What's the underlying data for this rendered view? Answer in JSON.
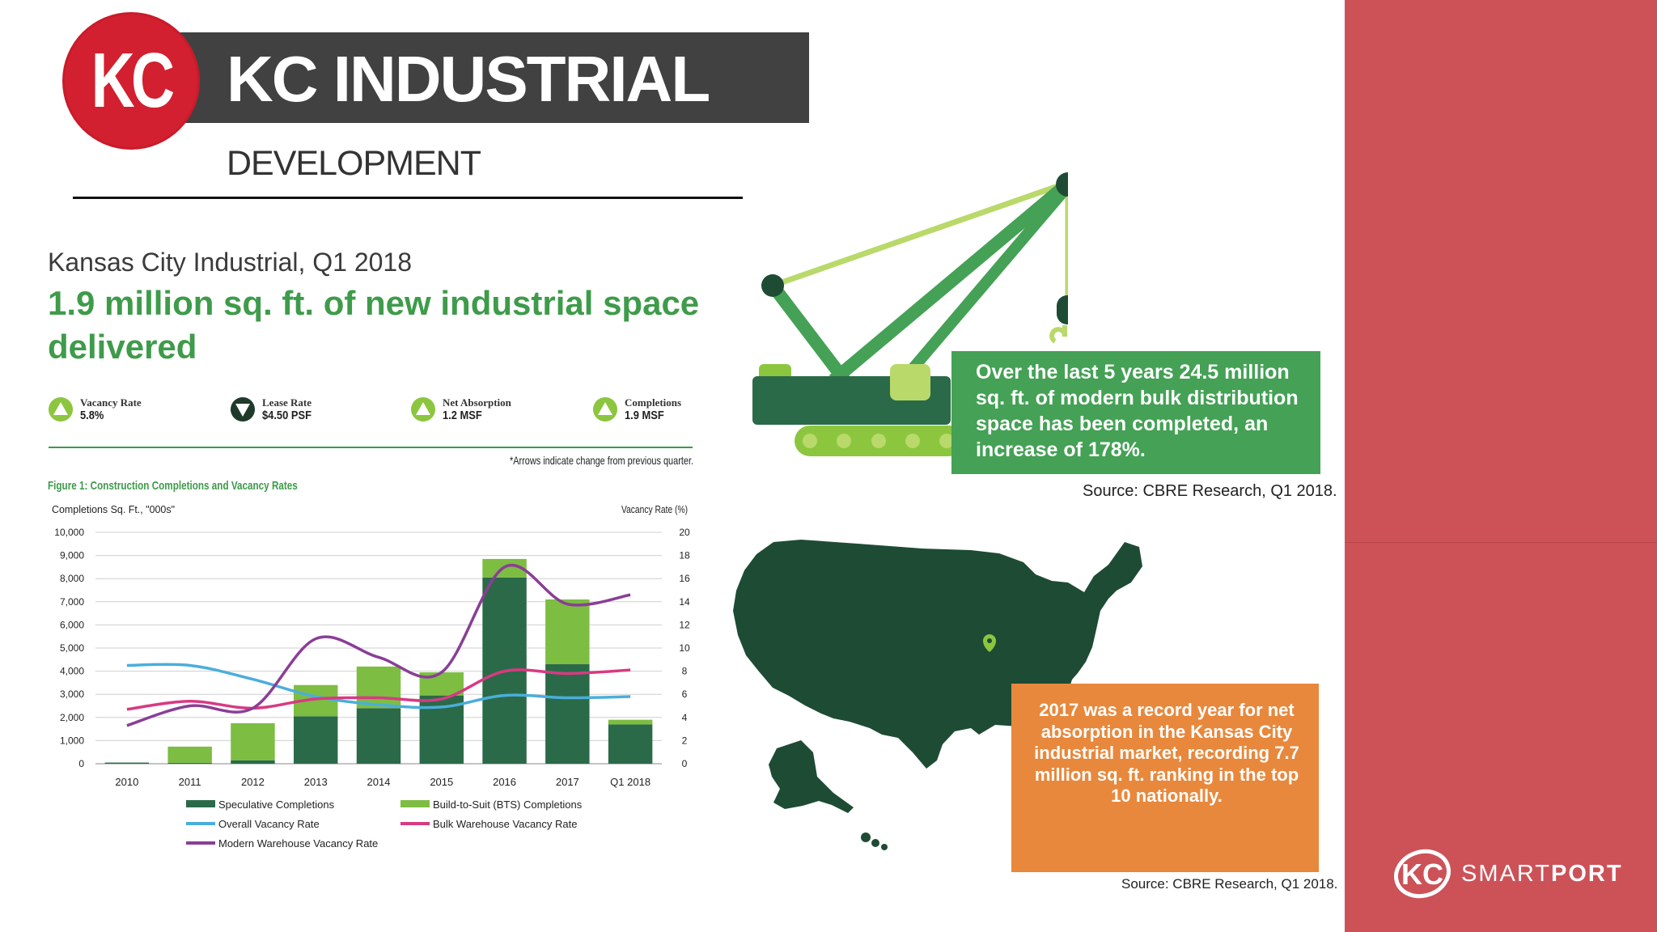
{
  "header": {
    "logo_text": "KC",
    "title": "KC INDUSTRIAL",
    "subtitle": "DEVELOPMENT"
  },
  "report": {
    "heading": "Kansas City Industrial, Q1 2018",
    "headline": "1.9 million sq. ft. of new industrial space delivered",
    "stats": [
      {
        "label": "Vacancy Rate",
        "value": "5.8%",
        "direction": "up"
      },
      {
        "label": "Lease Rate",
        "value": "$4.50 PSF",
        "direction": "down"
      },
      {
        "label": "Net Absorption",
        "value": "1.2 MSF",
        "direction": "up"
      },
      {
        "label": "Completions",
        "value": "1.9 MSF",
        "direction": "up"
      }
    ],
    "arrows_note": "*Arrows indicate change from previous quarter.",
    "figure_title": "Figure 1: Construction Completions and Vacancy Rates"
  },
  "chart_data": {
    "type": "bar",
    "title": "Figure 1: Construction Completions and Vacancy Rates",
    "ylabel": "Completions Sq. Ft., \"000s\"",
    "y2label": "Vacancy Rate (%)",
    "ylim": [
      0,
      10000
    ],
    "y2lim": [
      0,
      20
    ],
    "yticks": [
      "10,000",
      "9,000",
      "8,000",
      "7,000",
      "6,000",
      "5,000",
      "4,000",
      "3,000",
      "2,000",
      "1,000",
      "0"
    ],
    "y2ticks": [
      "20",
      "18",
      "16",
      "14",
      "12",
      "10",
      "8",
      "6",
      "4",
      "2",
      "0"
    ],
    "categories": [
      "2010",
      "2011",
      "2012",
      "2013",
      "2014",
      "2015",
      "2016",
      "2017",
      "Q1 2018"
    ],
    "stacked": true,
    "grid": true,
    "legend_position": "bottom",
    "series": [
      {
        "name": "Speculative Completions",
        "kind": "bar",
        "color": "#2a6a48",
        "values": [
          50,
          40,
          150,
          2050,
          2400,
          2950,
          8050,
          4300,
          1700
        ]
      },
      {
        "name": "Build-to-Suit (BTS) Completions",
        "kind": "bar",
        "color": "#7dbd42",
        "values": [
          0,
          700,
          1600,
          1350,
          1800,
          1000,
          800,
          2800,
          200
        ]
      },
      {
        "name": "Overall Vacancy Rate",
        "kind": "line",
        "axis": "right",
        "color": "#4aaedb",
        "values": [
          8.5,
          8.5,
          7.3,
          5.8,
          5.1,
          4.9,
          5.9,
          5.7,
          5.8
        ]
      },
      {
        "name": "Bulk Warehouse Vacancy Rate",
        "kind": "line",
        "axis": "right",
        "color": "#d83a82",
        "values": [
          4.7,
          5.4,
          4.8,
          5.6,
          5.7,
          5.6,
          8.0,
          7.8,
          8.1
        ]
      },
      {
        "name": "Modern Warehouse Vacancy Rate",
        "kind": "line",
        "axis": "right",
        "color": "#8a3e96",
        "values": [
          3.3,
          5.0,
          4.8,
          10.8,
          9.2,
          7.9,
          17.0,
          13.8,
          14.6
        ]
      }
    ]
  },
  "callouts": {
    "crane_text": "Over the last 5 years 24.5 million sq. ft. of modern bulk distribution space has been completed, an increase of 178%.",
    "source_1": "Source: CBRE Research, Q1 2018.",
    "record_text": "2017 was a record year for net absorption in the Kansas City industrial market, recording 7.7 million sq. ft. ranking in the top 10 nationally.",
    "source_2": "Source: CBRE Research, Q1 2018."
  },
  "branding": {
    "logo_mark": "KC",
    "smart": "SMART",
    "port": "PORT"
  },
  "colors": {
    "accent_red": "#cc5258",
    "brand_green": "#3e9b4a",
    "callout_green": "#44a155",
    "callout_orange": "#e8883c",
    "map_green": "#1e4b34",
    "header_dark": "#414142"
  }
}
